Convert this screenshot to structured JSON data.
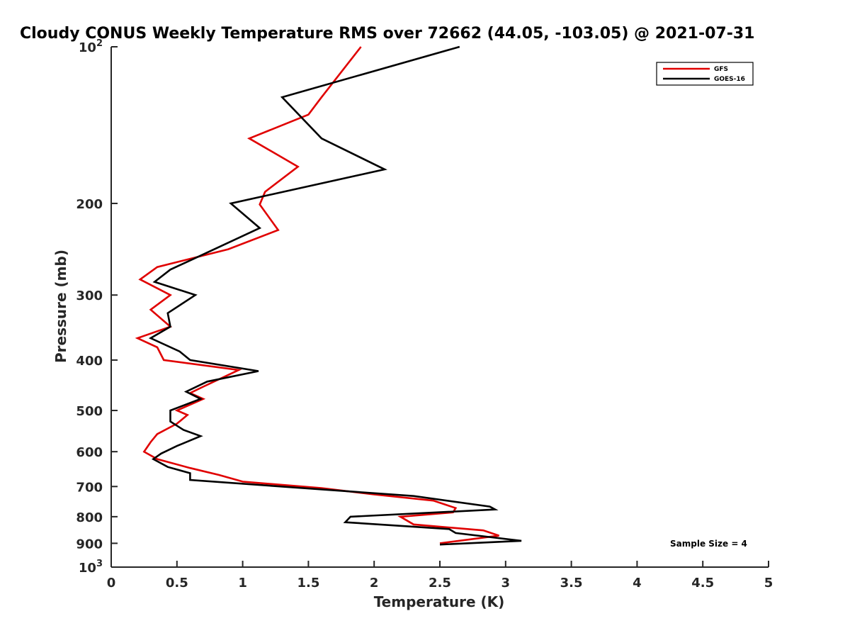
{
  "chart_data": {
    "type": "line",
    "title": "Cloudy CONUS Weekly Temperature RMS over 72662 (44.05, -103.05) @ 2021-07-31",
    "xlabel": "Temperature (K)",
    "ylabel": "Pressure (mb)",
    "xlim": [
      0,
      5
    ],
    "ylim": [
      100,
      1000
    ],
    "y_scale": "log",
    "y_reversed": true,
    "x_ticks": [
      "0",
      "0.5",
      "1",
      "1.5",
      "2",
      "2.5",
      "3",
      "3.5",
      "4",
      "4.5",
      "5"
    ],
    "y_ticks": [
      {
        "value": 100,
        "label": "10",
        "sup": "2"
      },
      {
        "value": 200,
        "label": "200"
      },
      {
        "value": 300,
        "label": "300"
      },
      {
        "value": 400,
        "label": "400"
      },
      {
        "value": 500,
        "label": "500"
      },
      {
        "value": 600,
        "label": "600"
      },
      {
        "value": 700,
        "label": "700"
      },
      {
        "value": 800,
        "label": "800"
      },
      {
        "value": 900,
        "label": "900"
      },
      {
        "value": 1000,
        "label": "10",
        "sup": "3"
      }
    ],
    "grid": false,
    "legend_position": "top-right",
    "annotation": "Sample Size = 4",
    "series": [
      {
        "name": "GFS",
        "color": "#e00000",
        "points": [
          [
            1.9,
            100
          ],
          [
            1.6,
            125
          ],
          [
            1.5,
            135
          ],
          [
            1.05,
            150
          ],
          [
            1.42,
            170
          ],
          [
            1.17,
            190
          ],
          [
            1.13,
            201
          ],
          [
            1.27,
            225
          ],
          [
            0.89,
            245
          ],
          [
            0.35,
            265
          ],
          [
            0.22,
            280
          ],
          [
            0.45,
            300
          ],
          [
            0.3,
            320
          ],
          [
            0.45,
            345
          ],
          [
            0.2,
            363
          ],
          [
            0.35,
            378
          ],
          [
            0.4,
            400
          ],
          [
            0.97,
            418
          ],
          [
            0.7,
            450
          ],
          [
            0.6,
            463
          ],
          [
            0.7,
            475
          ],
          [
            0.5,
            500
          ],
          [
            0.58,
            510
          ],
          [
            0.5,
            530
          ],
          [
            0.35,
            555
          ],
          [
            0.3,
            575
          ],
          [
            0.25,
            600
          ],
          [
            0.35,
            620
          ],
          [
            0.6,
            645
          ],
          [
            0.82,
            665
          ],
          [
            1.0,
            685
          ],
          [
            1.6,
            705
          ],
          [
            2.0,
            725
          ],
          [
            2.45,
            745
          ],
          [
            2.62,
            770
          ],
          [
            2.6,
            785
          ],
          [
            2.2,
            800
          ],
          [
            2.3,
            828
          ],
          [
            2.83,
            850
          ],
          [
            2.95,
            870
          ],
          [
            2.5,
            900
          ]
        ]
      },
      {
        "name": "GOES-16",
        "color": "#000000",
        "points": [
          [
            2.65,
            100
          ],
          [
            1.3,
            125
          ],
          [
            1.6,
            150
          ],
          [
            2.08,
            172
          ],
          [
            0.91,
            200
          ],
          [
            1.13,
            223
          ],
          [
            0.68,
            252
          ],
          [
            0.45,
            268
          ],
          [
            0.33,
            283
          ],
          [
            0.64,
            300
          ],
          [
            0.43,
            325
          ],
          [
            0.45,
            345
          ],
          [
            0.3,
            363
          ],
          [
            0.52,
            385
          ],
          [
            0.6,
            400
          ],
          [
            1.12,
            420
          ],
          [
            0.73,
            440
          ],
          [
            0.57,
            460
          ],
          [
            0.68,
            475
          ],
          [
            0.45,
            500
          ],
          [
            0.45,
            525
          ],
          [
            0.55,
            545
          ],
          [
            0.68,
            560
          ],
          [
            0.5,
            585
          ],
          [
            0.38,
            605
          ],
          [
            0.32,
            620
          ],
          [
            0.43,
            642
          ],
          [
            0.6,
            660
          ],
          [
            0.6,
            680
          ],
          [
            2.3,
            730
          ],
          [
            2.88,
            765
          ],
          [
            2.92,
            775
          ],
          [
            1.82,
            800
          ],
          [
            1.78,
            820
          ],
          [
            2.57,
            845
          ],
          [
            2.62,
            860
          ],
          [
            3.12,
            890
          ],
          [
            2.5,
            905
          ]
        ]
      }
    ]
  }
}
